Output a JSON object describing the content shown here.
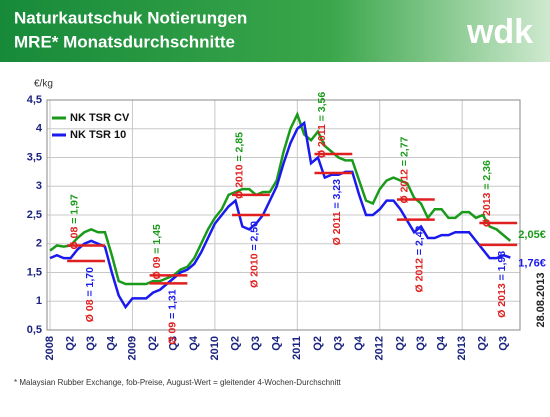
{
  "header": {
    "title_line1": "Naturkautschuk Notierungen",
    "title_line2": "MRE* Monatsdurchschnitte",
    "logo": "wdk"
  },
  "chart_data": {
    "type": "line",
    "y_label": "€/kg",
    "categories": [
      "2008",
      null,
      null,
      "Q2",
      null,
      null,
      "Q3",
      null,
      null,
      "Q4",
      null,
      null,
      "2009",
      null,
      null,
      "Q2",
      null,
      null,
      "Q3",
      null,
      null,
      "Q4",
      null,
      null,
      "2010",
      null,
      null,
      "Q2",
      null,
      null,
      "Q3",
      null,
      null,
      "Q4",
      null,
      null,
      "2011",
      null,
      null,
      "Q2",
      null,
      null,
      "Q3",
      null,
      null,
      "Q4",
      null,
      null,
      "2012",
      null,
      null,
      "Q2",
      null,
      null,
      "Q3",
      null,
      null,
      "Q4",
      null,
      null,
      "2013",
      null,
      null,
      "Q2",
      null,
      null,
      "Q3",
      null
    ],
    "series": [
      {
        "name": "NK TSR CV",
        "color": "#1a9a1a",
        "last_label": "2,05€",
        "values": [
          1.88,
          1.97,
          1.95,
          1.97,
          2.1,
          2.2,
          2.25,
          2.2,
          2.2,
          1.8,
          1.35,
          1.3,
          1.3,
          1.3,
          1.3,
          1.35,
          1.35,
          1.4,
          1.45,
          1.55,
          1.6,
          1.75,
          2.0,
          2.25,
          2.45,
          2.6,
          2.85,
          2.9,
          2.95,
          2.95,
          2.85,
          2.9,
          2.9,
          3.1,
          3.6,
          4.0,
          4.25,
          3.9,
          3.8,
          3.95,
          3.7,
          3.6,
          3.5,
          3.45,
          3.45,
          3.1,
          2.75,
          2.7,
          2.95,
          3.1,
          3.15,
          3.1,
          3.05,
          2.8,
          2.7,
          2.45,
          2.6,
          2.6,
          2.45,
          2.45,
          2.55,
          2.55,
          2.45,
          2.5,
          2.3,
          2.25,
          2.15,
          2.05
        ]
      },
      {
        "name": "NK TSR 10",
        "color": "#1a1aee",
        "last_label": "1,76€",
        "values": [
          1.75,
          1.8,
          1.75,
          1.75,
          1.9,
          2.0,
          2.05,
          2.0,
          1.95,
          1.5,
          1.1,
          0.9,
          1.05,
          1.05,
          1.05,
          1.15,
          1.2,
          1.3,
          1.4,
          1.5,
          1.55,
          1.65,
          1.85,
          2.1,
          2.35,
          2.5,
          2.65,
          2.75,
          2.3,
          2.25,
          2.35,
          2.5,
          2.75,
          3.0,
          3.4,
          3.75,
          4.0,
          4.1,
          3.4,
          3.5,
          3.15,
          3.2,
          3.2,
          3.25,
          3.25,
          2.85,
          2.5,
          2.5,
          2.6,
          2.75,
          2.75,
          2.6,
          2.4,
          2.2,
          2.3,
          2.1,
          2.1,
          2.15,
          2.15,
          2.2,
          2.2,
          2.2,
          2.05,
          1.9,
          1.75,
          1.75,
          1.8,
          1.76
        ]
      }
    ],
    "averages": [
      {
        "year_label": "Ø 08",
        "values": [
          1.97,
          1.7
        ],
        "value_labels": [
          "= 1,97",
          "= 1,70"
        ]
      },
      {
        "year_label": "Ø 09",
        "values": [
          1.45,
          1.31
        ],
        "value_labels": [
          "= 1,45",
          "= 1,31"
        ]
      },
      {
        "year_label": "Ø 2010",
        "values": [
          2.85,
          2.5
        ],
        "value_labels": [
          "= 2,85",
          "= 2,50"
        ]
      },
      {
        "year_label": "Ø 2011",
        "values": [
          3.56,
          3.23
        ],
        "value_labels": [
          "= 3,56",
          "= 3,23"
        ]
      },
      {
        "year_label": "Ø 2012",
        "values": [
          2.77,
          2.42
        ],
        "value_labels": [
          "= 2,77",
          "= 2,42"
        ]
      },
      {
        "year_label": "Ø 2013",
        "values": [
          2.36,
          1.98
        ],
        "value_labels": [
          "= 2,36",
          "= 1,98"
        ]
      }
    ],
    "average_color": "#e02020",
    "ylim": [
      0.5,
      4.5
    ],
    "yticks": [
      {
        "value": 0.5,
        "label": "0,5"
      },
      1,
      {
        "value": 1.5,
        "label": "1,5"
      },
      2,
      {
        "value": 2.5,
        "label": "2,5"
      },
      3,
      {
        "value": 3.5,
        "label": "3,5"
      },
      4,
      {
        "value": 4.5,
        "label": "4,5"
      }
    ],
    "grid": true,
    "date": "28.08.2013",
    "footnote": "* Malaysian Rubber Exchange, fob-Preise, August-Wert = gleitender 4-Wochen-Durchschnitt"
  }
}
